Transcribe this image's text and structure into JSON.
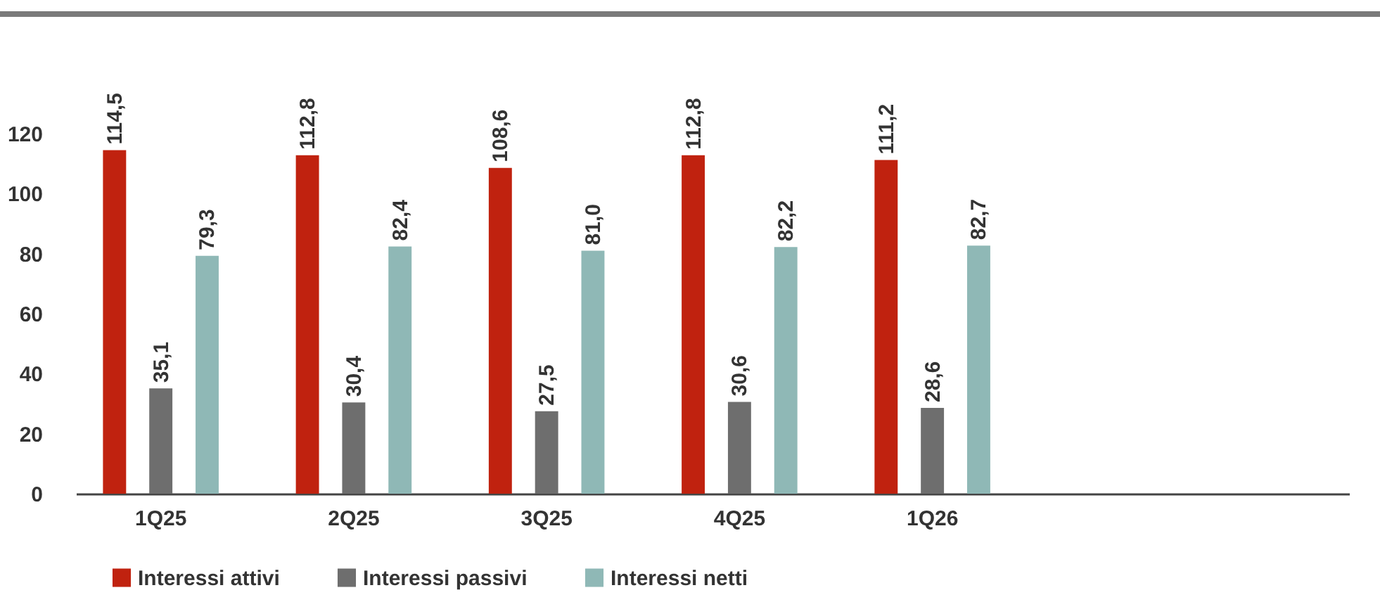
{
  "chart_data": {
    "type": "bar",
    "categories": [
      "1Q25",
      "2Q25",
      "3Q25",
      "4Q25",
      "1Q26"
    ],
    "series": [
      {
        "name": "Interessi attivi",
        "color": "#c0220f",
        "values": [
          114.5,
          112.8,
          108.6,
          112.8,
          111.2
        ],
        "value_labels": [
          "114,5",
          "112,8",
          "108,6",
          "112,8",
          "111,2"
        ]
      },
      {
        "name": "Interessi passivi",
        "color": "#6e6e6e",
        "values": [
          35.1,
          30.4,
          27.5,
          30.6,
          28.6
        ],
        "value_labels": [
          "35,1",
          "30,4",
          "27,5",
          "30,6",
          "28,6"
        ]
      },
      {
        "name": "Interessi netti",
        "color": "#8fb8b6",
        "values": [
          79.3,
          82.4,
          81.0,
          82.2,
          82.7
        ],
        "value_labels": [
          "79,3",
          "82,4",
          "81,0",
          "82,2",
          "82,7"
        ]
      }
    ],
    "ylim": [
      0,
      120
    ],
    "yticks": [
      0,
      20,
      40,
      60,
      80,
      100,
      120
    ],
    "grid": false,
    "legend": "bottom left"
  }
}
